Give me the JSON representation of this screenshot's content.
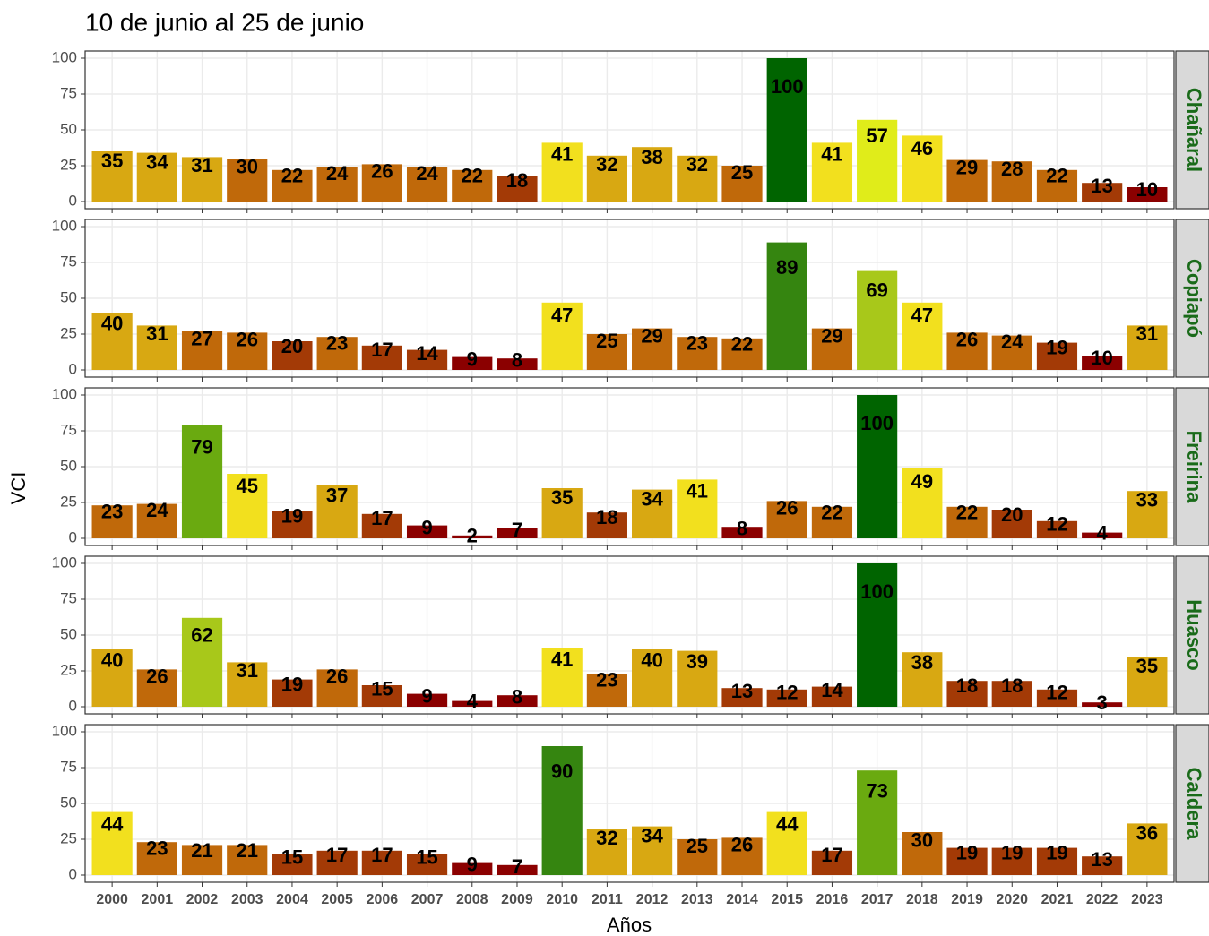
{
  "chart_data": {
    "type": "bar",
    "title": "10 de junio al 25 de junio",
    "x_label": "Años",
    "y_label": "VCI",
    "categories": [
      "2000",
      "2001",
      "2002",
      "2003",
      "2004",
      "2005",
      "2006",
      "2007",
      "2008",
      "2009",
      "2010",
      "2011",
      "2012",
      "2013",
      "2014",
      "2015",
      "2016",
      "2017",
      "2018",
      "2019",
      "2020",
      "2021",
      "2022",
      "2023"
    ],
    "ylim": [
      -5,
      105
    ],
    "yticks": [
      0,
      25,
      50,
      75,
      100
    ],
    "grid": true,
    "facets": [
      {
        "name": "Chañaral",
        "values": [
          35,
          34,
          31,
          30,
          22,
          24,
          26,
          24,
          22,
          18,
          41,
          32,
          38,
          32,
          25,
          100,
          41,
          57,
          46,
          29,
          28,
          22,
          13,
          10
        ],
        "colors": [
          "#d8a812",
          "#d8a812",
          "#d8a812",
          "#c0690a",
          "#c0690a",
          "#c0690a",
          "#c0690a",
          "#c0690a",
          "#c0690a",
          "#a33a06",
          "#f2e01e",
          "#d8a812",
          "#d8a812",
          "#d8a812",
          "#c0690a",
          "#006400",
          "#f2e01e",
          "#e0ec1a",
          "#f2e01e",
          "#c0690a",
          "#c0690a",
          "#c0690a",
          "#a33a06",
          "#8b0000"
        ]
      },
      {
        "name": "Copiapó",
        "values": [
          40,
          31,
          27,
          26,
          20,
          23,
          17,
          14,
          9,
          8,
          47,
          25,
          29,
          23,
          22,
          89,
          29,
          69,
          47,
          26,
          24,
          19,
          10,
          31
        ],
        "colors": [
          "#d8a812",
          "#d8a812",
          "#c0690a",
          "#c0690a",
          "#a33a06",
          "#c0690a",
          "#a33a06",
          "#a33a06",
          "#8b0000",
          "#8b0000",
          "#f2e01e",
          "#c0690a",
          "#c0690a",
          "#c0690a",
          "#c0690a",
          "#358510",
          "#c0690a",
          "#a8c81a",
          "#f2e01e",
          "#c0690a",
          "#c0690a",
          "#a33a06",
          "#8b0000",
          "#d8a812"
        ]
      },
      {
        "name": "Freirina",
        "values": [
          23,
          24,
          79,
          45,
          19,
          37,
          17,
          9,
          2,
          7,
          35,
          18,
          34,
          41,
          8,
          26,
          22,
          100,
          49,
          22,
          20,
          12,
          4,
          33
        ],
        "colors": [
          "#c0690a",
          "#c0690a",
          "#6aaa10",
          "#f2e01e",
          "#a33a06",
          "#d8a812",
          "#a33a06",
          "#8b0000",
          "#8b0000",
          "#8b0000",
          "#d8a812",
          "#a33a06",
          "#d8a812",
          "#f2e01e",
          "#8b0000",
          "#c0690a",
          "#c0690a",
          "#006400",
          "#f2e01e",
          "#c0690a",
          "#a33a06",
          "#a33a06",
          "#8b0000",
          "#d8a812"
        ]
      },
      {
        "name": "Huasco",
        "values": [
          40,
          26,
          62,
          31,
          19,
          26,
          15,
          9,
          4,
          8,
          41,
          23,
          40,
          39,
          13,
          12,
          14,
          100,
          38,
          18,
          18,
          12,
          3,
          35
        ],
        "colors": [
          "#d8a812",
          "#c0690a",
          "#a8c81a",
          "#d8a812",
          "#a33a06",
          "#c0690a",
          "#a33a06",
          "#8b0000",
          "#8b0000",
          "#8b0000",
          "#f2e01e",
          "#c0690a",
          "#d8a812",
          "#d8a812",
          "#a33a06",
          "#a33a06",
          "#a33a06",
          "#006400",
          "#d8a812",
          "#a33a06",
          "#a33a06",
          "#a33a06",
          "#8b0000",
          "#d8a812"
        ]
      },
      {
        "name": "Caldera",
        "values": [
          44,
          23,
          21,
          21,
          15,
          17,
          17,
          15,
          9,
          7,
          90,
          32,
          34,
          25,
          26,
          44,
          17,
          73,
          30,
          19,
          19,
          19,
          13,
          36
        ],
        "colors": [
          "#f2e01e",
          "#c0690a",
          "#c0690a",
          "#c0690a",
          "#a33a06",
          "#a33a06",
          "#a33a06",
          "#a33a06",
          "#8b0000",
          "#8b0000",
          "#358510",
          "#d8a812",
          "#d8a812",
          "#c0690a",
          "#c0690a",
          "#f2e01e",
          "#a33a06",
          "#6aaa10",
          "#c0690a",
          "#a33a06",
          "#a33a06",
          "#a33a06",
          "#a33a06",
          "#d8a812"
        ]
      }
    ]
  }
}
